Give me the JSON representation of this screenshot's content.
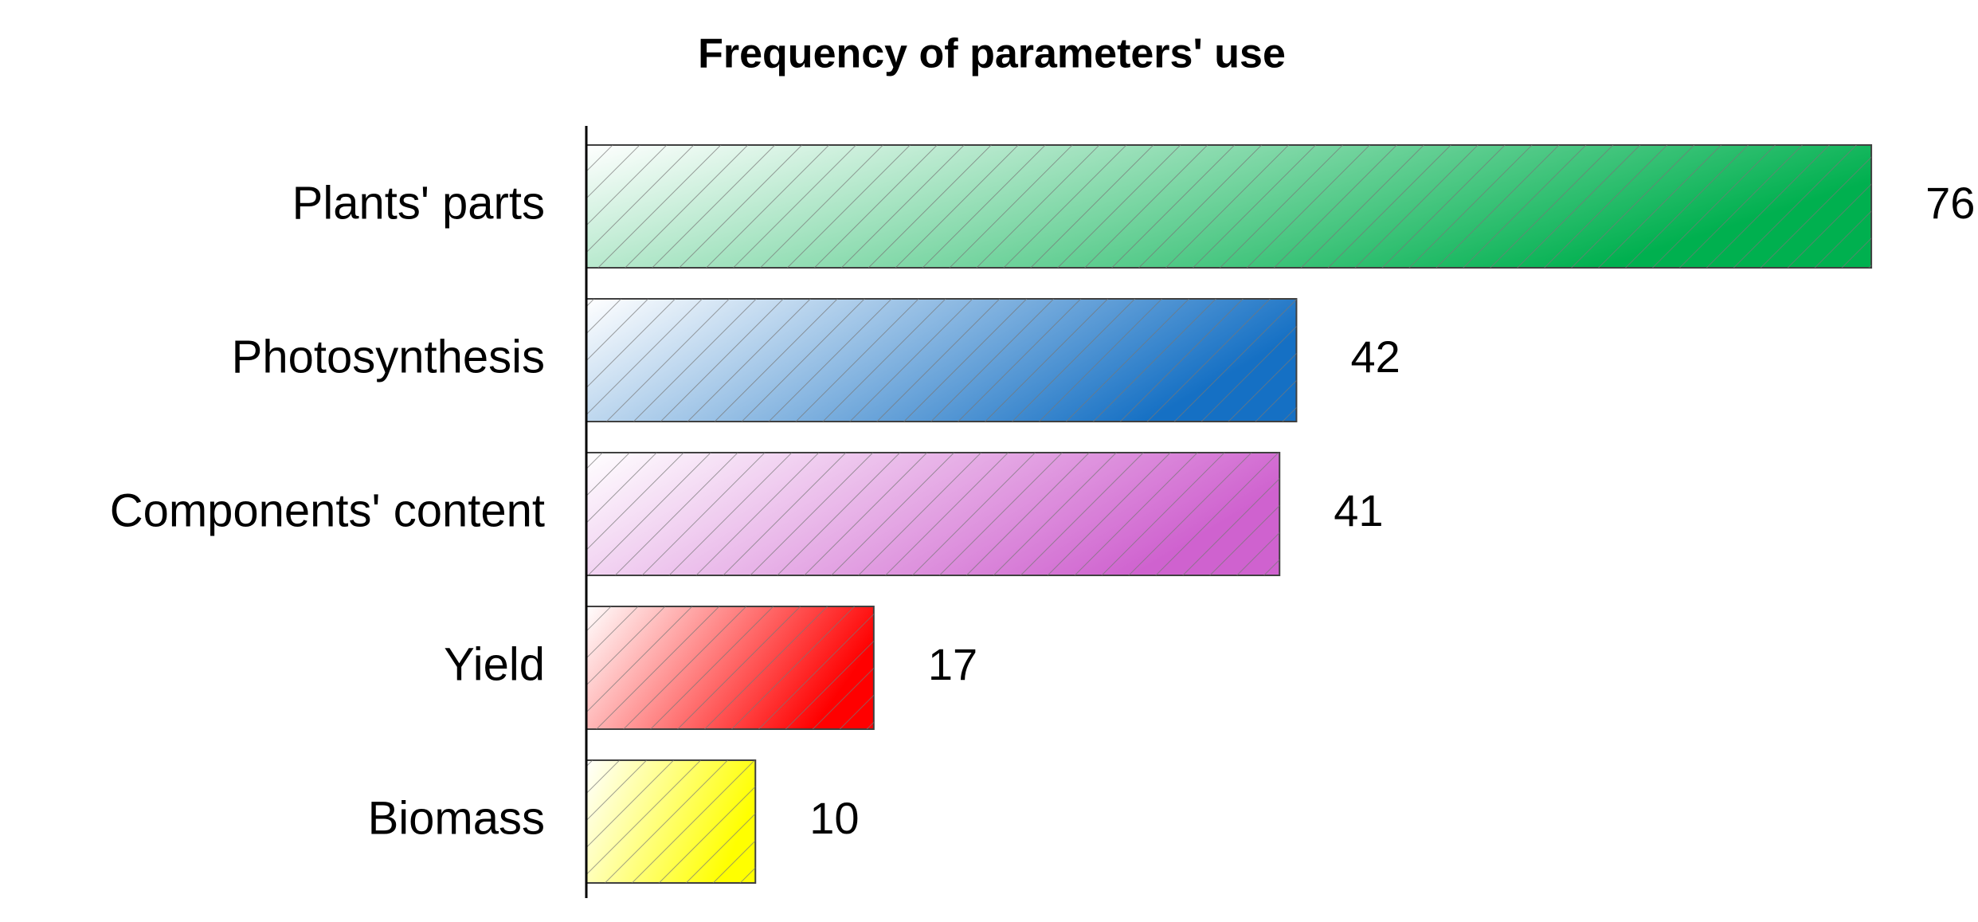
{
  "chart_data": {
    "type": "hbar",
    "title": "Frequency of parameters' use",
    "categories": [
      "Plants' parts",
      "Photosynthesis",
      "Components' content",
      "Yield",
      "Biomass"
    ],
    "values": [
      76,
      42,
      41,
      17,
      10
    ],
    "colors": [
      "#00b04f",
      "#1570c4",
      "#cf62cf",
      "#ff0000",
      "#ffff00"
    ],
    "xlim": [
      0,
      80
    ]
  }
}
